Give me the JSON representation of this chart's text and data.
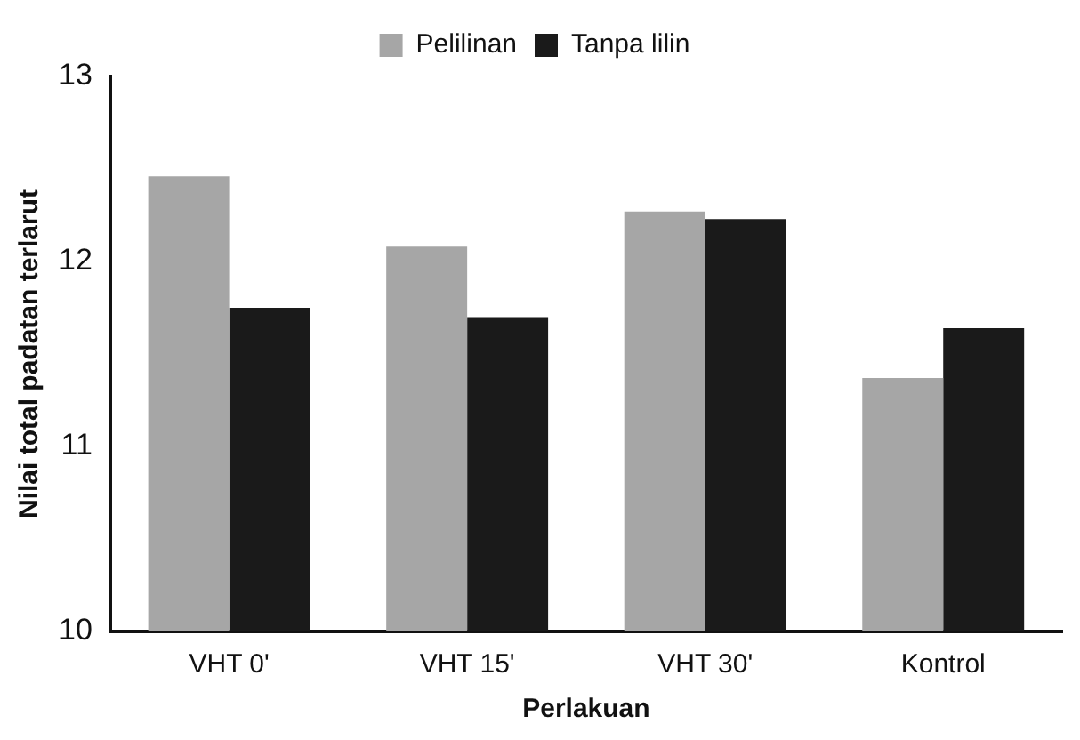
{
  "chart_data": {
    "type": "bar",
    "xlabel": "Perlakuan",
    "ylabel": "Nilai total padatan terlarut",
    "categories": [
      "VHT 0'",
      "VHT 15'",
      "VHT 30'",
      "Kontrol"
    ],
    "series": [
      {
        "name": "Pelilinan",
        "color": "#a6a6a6",
        "values": [
          12.46,
          12.08,
          12.27,
          11.37
        ]
      },
      {
        "name": "Tanpa lilin",
        "color": "#1a1a1a",
        "values": [
          11.75,
          11.7,
          12.23,
          11.64
        ]
      }
    ],
    "ylim": [
      10,
      13
    ],
    "yticks": [
      10,
      11,
      12,
      13
    ],
    "grid": false,
    "legend": "top"
  }
}
